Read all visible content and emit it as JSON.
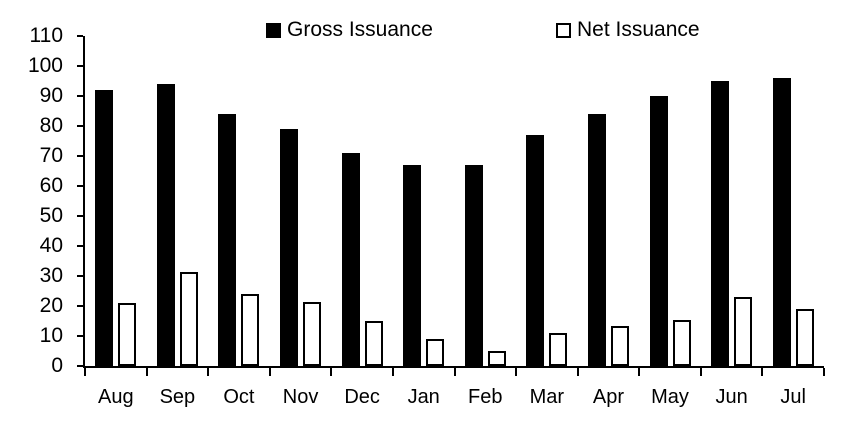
{
  "legend": {
    "items": [
      {
        "label": "Gross Issuance",
        "swatch": "black-filled-square"
      },
      {
        "label": "Net Issuance",
        "swatch": "white-outlined-square"
      }
    ]
  },
  "colors": {
    "gross_bar_fill": "#000000",
    "net_bar_fill": "#ffffff",
    "net_bar_border": "#000000",
    "axis": "#000000",
    "background": "#ffffff",
    "text": "#000000"
  },
  "chart_data": {
    "type": "bar",
    "title": "",
    "xlabel": "",
    "ylabel": "",
    "categories": [
      "Aug",
      "Sep",
      "Oct",
      "Nov",
      "Dec",
      "Jan",
      "Feb",
      "Mar",
      "Apr",
      "May",
      "Jun",
      "Jul"
    ],
    "series": [
      {
        "name": "Gross Issuance",
        "values": [
          92,
          94,
          84,
          79,
          71,
          67,
          67,
          77,
          84,
          90,
          95,
          96
        ]
      },
      {
        "name": "Net Issuance",
        "values": [
          21,
          31.5,
          24,
          21.5,
          15,
          9,
          5,
          11,
          13.5,
          15.5,
          23,
          19
        ]
      }
    ],
    "ylim": [
      0,
      110
    ],
    "yticks": [
      0,
      10,
      20,
      30,
      40,
      50,
      60,
      70,
      80,
      90,
      100,
      110
    ],
    "grid": false,
    "legend_position": "top"
  }
}
